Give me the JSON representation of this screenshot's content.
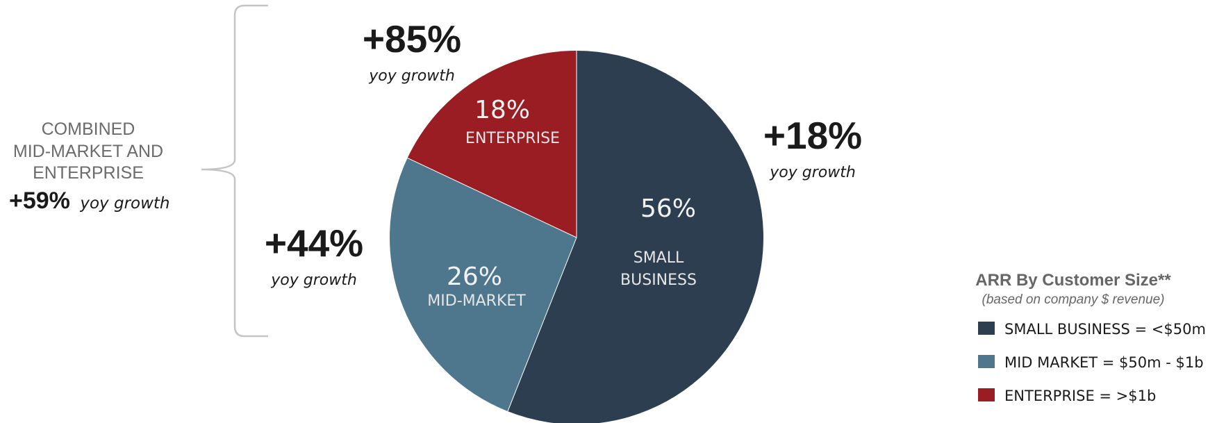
{
  "chart_data": {
    "type": "pie",
    "slices": [
      {
        "key": "small",
        "label": "SMALL BUSINESS",
        "label_lines": [
          "SMALL",
          "BUSINESS"
        ],
        "value": 56,
        "value_label": "56%",
        "color": "#2c3e50",
        "growth": "+18%",
        "growth_note": "yoy growth"
      },
      {
        "key": "mid",
        "label": "MID-MARKET",
        "label_lines": [
          "MID-MARKET"
        ],
        "value": 26,
        "value_label": "26%",
        "color": "#4e778e",
        "growth": "+44%",
        "growth_note": "yoy growth"
      },
      {
        "key": "enterprise",
        "label": "ENTERPRISE",
        "label_lines": [
          "ENTERPRISE"
        ],
        "value": 18,
        "value_label": "18%",
        "color": "#9a1d23",
        "growth": "+85%",
        "growth_note": "yoy growth"
      }
    ],
    "combined": {
      "lines": [
        "COMBINED",
        "MID-MARKET AND",
        "ENTERPRISE"
      ],
      "growth": "+59%",
      "growth_note": "yoy growth"
    },
    "legend": {
      "title": "ARR By Customer Size**",
      "subtitle": "(based on company $ revenue)",
      "placement": "bottom-right",
      "items": [
        {
          "label": "SMALL BUSINESS  = <$50m",
          "color": "#2c3e50"
        },
        {
          "label": "MID MARKET = $50m - $1b",
          "color": "#4e778e"
        },
        {
          "label": "ENTERPRISE = >$1b",
          "color": "#9a1d23"
        }
      ]
    }
  }
}
